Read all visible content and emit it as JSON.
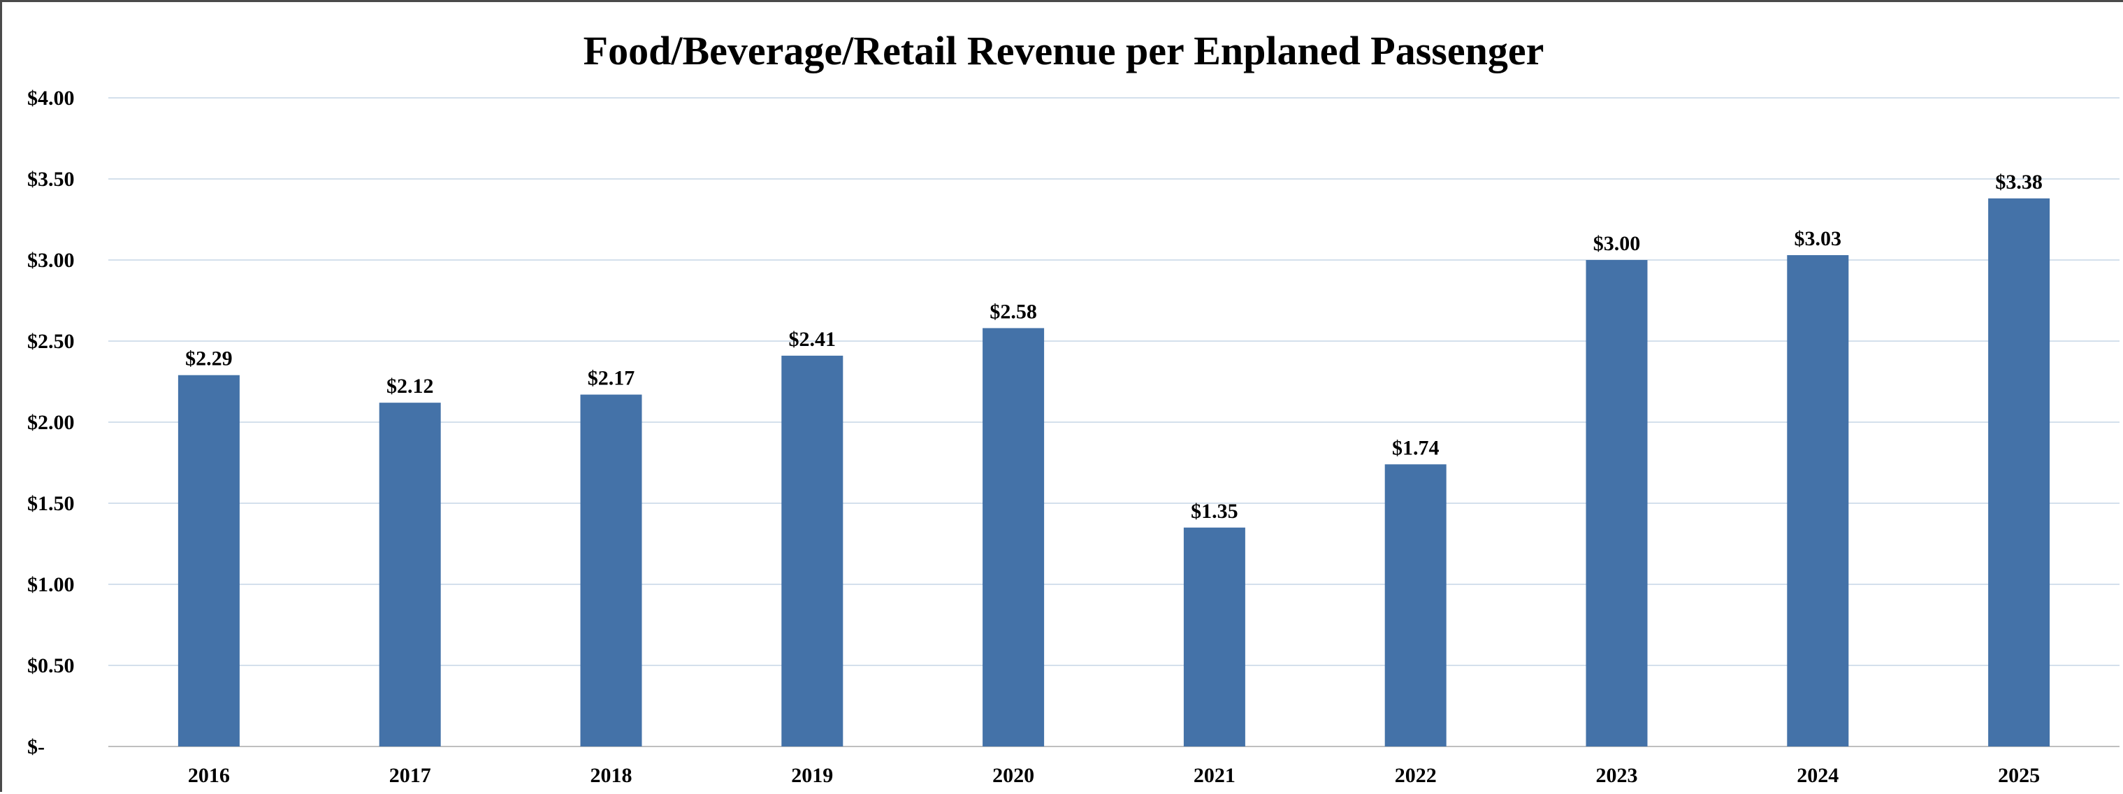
{
  "chart_data": {
    "type": "bar",
    "title": "Food/Beverage/Retail Revenue per Enplaned Passenger",
    "xlabel": "",
    "ylabel": "",
    "categories": [
      "2016",
      "2017",
      "2018",
      "2019",
      "2020",
      "2021",
      "2022",
      "2023",
      "2024",
      "2025"
    ],
    "values": [
      2.29,
      2.12,
      2.17,
      2.41,
      2.58,
      1.35,
      1.74,
      3.0,
      3.03,
      3.38
    ],
    "data_labels": [
      "$2.29",
      "$2.12",
      "$2.17",
      "$2.41",
      "$2.58",
      "$1.35",
      "$1.74",
      "$3.00",
      "$3.03",
      "$3.38"
    ],
    "ylim": [
      0,
      4
    ],
    "y_ticks": [
      0,
      0.5,
      1.0,
      1.5,
      2.0,
      2.5,
      3.0,
      3.5,
      4.0
    ],
    "y_tick_labels": [
      "$-",
      "$0.50",
      "$1.00",
      "$1.50",
      "$2.00",
      "$2.50",
      "$3.00",
      "$3.50",
      "$4.00"
    ],
    "grid": true,
    "legend": "none",
    "colors": {
      "bar": "#4472A8",
      "grid": "#C5D5E6",
      "axis": "#BFBFBF"
    }
  }
}
